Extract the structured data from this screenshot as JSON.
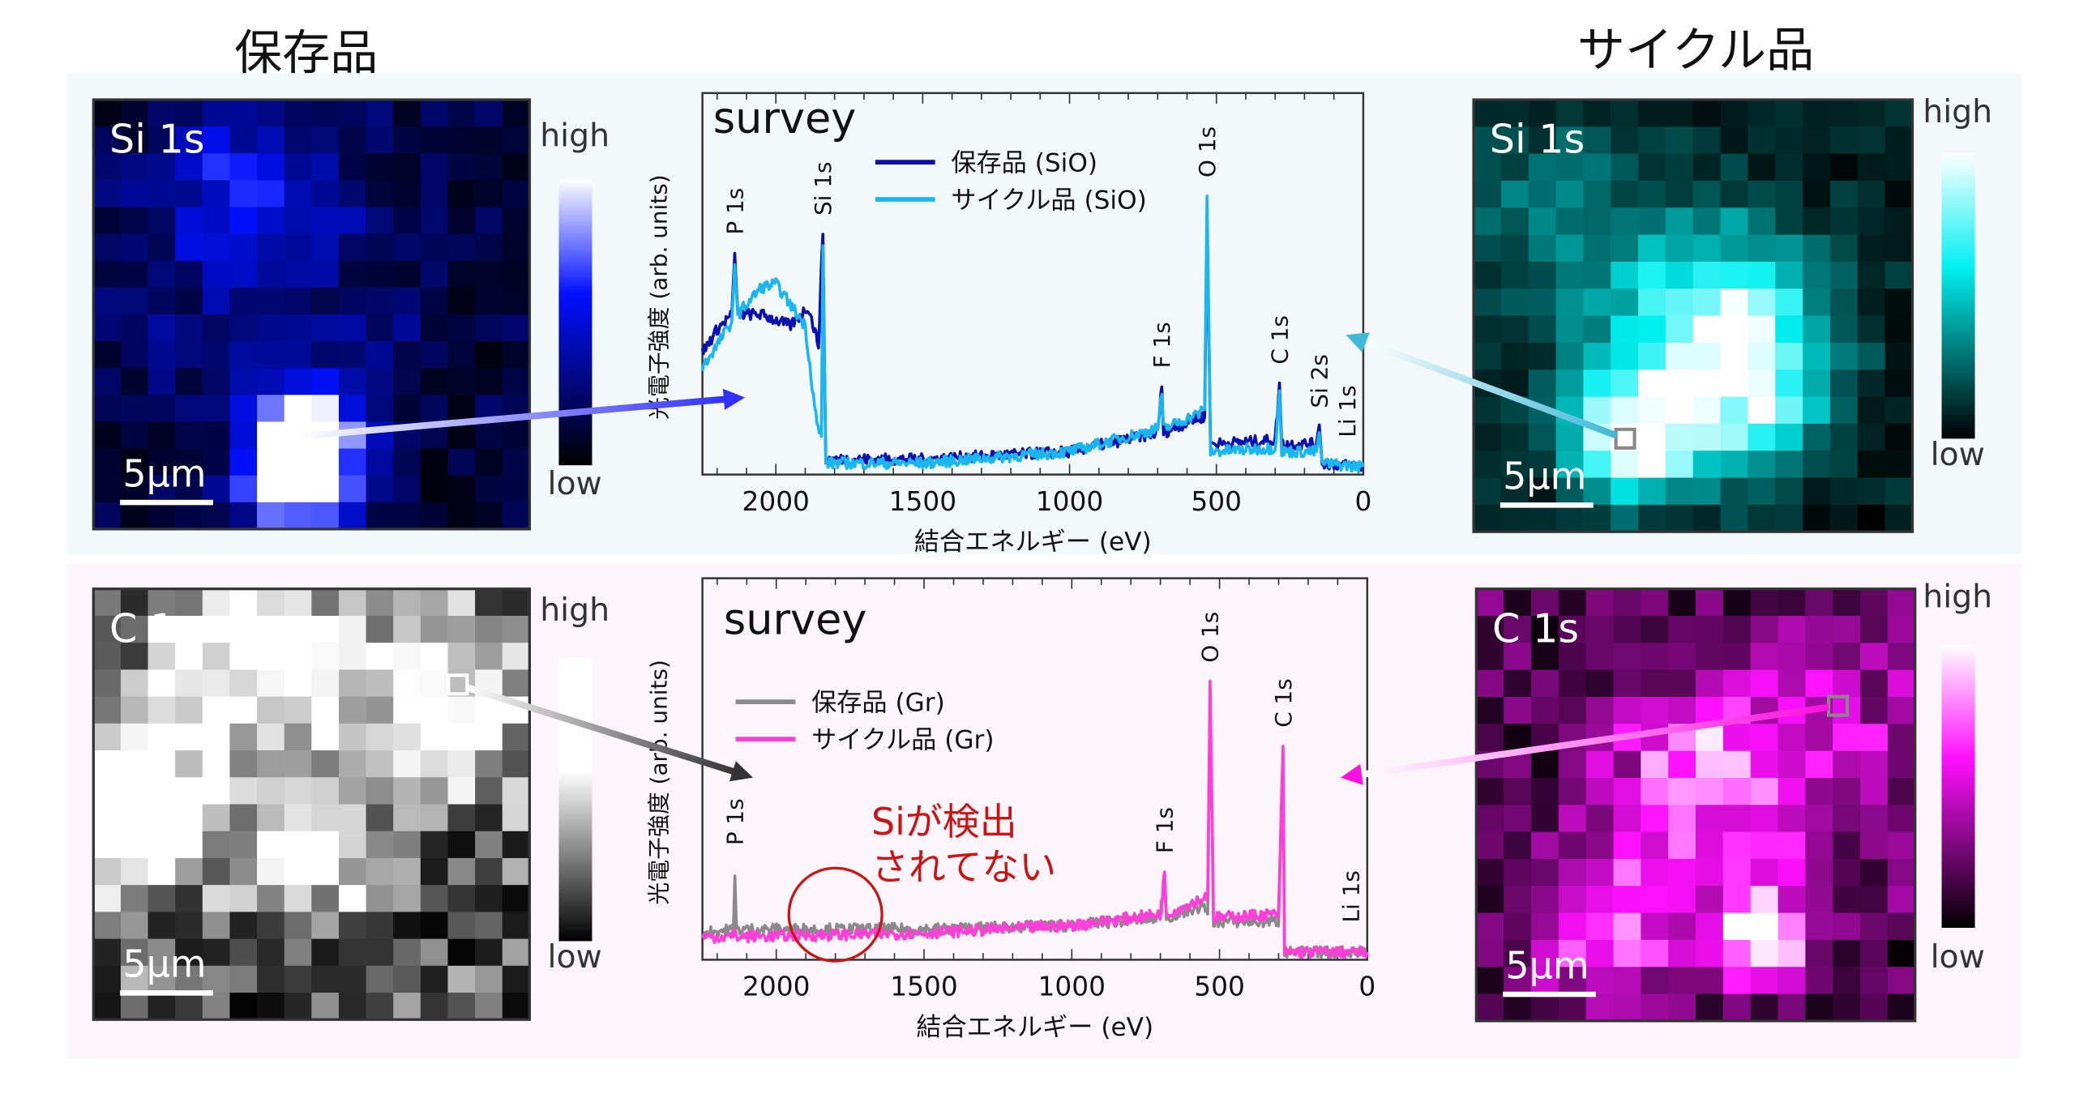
{
  "titles": {
    "left": "保存品",
    "right": "サイクル品"
  },
  "colors": {
    "band_top": "#f3f8fb",
    "band_bottom": "#fcf5fb",
    "sio_stored": "#0b0fb0",
    "sio_cycled": "#19b6f0",
    "gr_stored": "#8a8a8a",
    "gr_cycled": "#ff3fd8",
    "annotation": "#c81414"
  },
  "maps": [
    {
      "label": "Si 1s",
      "scale": "5μm",
      "high": "high",
      "low": "low",
      "color": "#0010ff"
    },
    {
      "label": "Si 1s",
      "scale": "5μm",
      "high": "high",
      "low": "low",
      "color": "#00f0f0"
    },
    {
      "label": "C 1s",
      "scale": "5μm",
      "high": "high",
      "low": "low",
      "color": "#ffffff"
    },
    {
      "label": "C 1s",
      "scale": "5μm",
      "high": "high",
      "low": "low",
      "color": "#ff10ff"
    }
  ],
  "chart_data": [
    {
      "type": "line",
      "title": "survey",
      "xlabel": "結合エネルギー (eV)",
      "ylabel": "光電子強度 (arb. units)",
      "xlim": [
        2250,
        0
      ],
      "xticks": [
        "2000",
        "1500",
        "1000",
        "500",
        "0"
      ],
      "ylim": [
        0,
        1
      ],
      "legend": "top-center",
      "series": [
        {
          "name": "保存品 (SiO)",
          "points": [
            [
              2250,
              0.32
            ],
            [
              2200,
              0.38
            ],
            [
              2150,
              0.42
            ],
            [
              2140,
              0.58
            ],
            [
              2130,
              0.42
            ],
            [
              2050,
              0.42
            ],
            [
              1950,
              0.39
            ],
            [
              1890,
              0.44
            ],
            [
              1855,
              0.34
            ],
            [
              1840,
              0.63
            ],
            [
              1830,
              0.04
            ],
            [
              1500,
              0.04
            ],
            [
              1000,
              0.06
            ],
            [
              700,
              0.11
            ],
            [
              686,
              0.23
            ],
            [
              680,
              0.11
            ],
            [
              560,
              0.15
            ],
            [
              540,
              0.15
            ],
            [
              532,
              0.67
            ],
            [
              520,
              0.08
            ],
            [
              300,
              0.09
            ],
            [
              285,
              0.24
            ],
            [
              278,
              0.08
            ],
            [
              160,
              0.08
            ],
            [
              150,
              0.13
            ],
            [
              140,
              0.03
            ],
            [
              0,
              0.02
            ]
          ]
        },
        {
          "name": "サイクル品 (SiO)",
          "points": [
            [
              2250,
              0.28
            ],
            [
              2200,
              0.34
            ],
            [
              2150,
              0.4
            ],
            [
              2140,
              0.55
            ],
            [
              2130,
              0.42
            ],
            [
              2050,
              0.49
            ],
            [
              2000,
              0.5
            ],
            [
              1900,
              0.39
            ],
            [
              1860,
              0.13
            ],
            [
              1845,
              0.1
            ],
            [
              1840,
              0.6
            ],
            [
              1830,
              0.03
            ],
            [
              1500,
              0.03
            ],
            [
              1000,
              0.06
            ],
            [
              700,
              0.12
            ],
            [
              686,
              0.21
            ],
            [
              680,
              0.12
            ],
            [
              560,
              0.16
            ],
            [
              540,
              0.17
            ],
            [
              532,
              0.73
            ],
            [
              520,
              0.06
            ],
            [
              300,
              0.07
            ],
            [
              285,
              0.22
            ],
            [
              278,
              0.06
            ],
            [
              160,
              0.06
            ],
            [
              150,
              0.11
            ],
            [
              140,
              0.03
            ],
            [
              0,
              0.02
            ]
          ]
        }
      ],
      "annotations": [
        "P 1s",
        "Si 1s",
        "F 1s",
        "O 1s",
        "C 1s",
        "Si 2s",
        "Li 1s"
      ],
      "annotation_positions_ev": [
        2140,
        1840,
        686,
        532,
        285,
        150,
        55
      ]
    },
    {
      "type": "line",
      "title": "survey",
      "xlabel": "結合エネルギー (eV)",
      "ylabel": "光電子強度 (arb. units)",
      "xlim": [
        2250,
        0
      ],
      "xticks": [
        "2000",
        "1500",
        "1000",
        "500",
        "0"
      ],
      "ylim": [
        0,
        1
      ],
      "legend": "left",
      "series": [
        {
          "name": "保存品 (Gr)",
          "points": [
            [
              2250,
              0.07
            ],
            [
              2145,
              0.08
            ],
            [
              2140,
              0.22
            ],
            [
              2135,
              0.08
            ],
            [
              1500,
              0.08
            ],
            [
              1000,
              0.09
            ],
            [
              700,
              0.11
            ],
            [
              686,
              0.21
            ],
            [
              680,
              0.11
            ],
            [
              560,
              0.14
            ],
            [
              540,
              0.12
            ],
            [
              532,
              0.68
            ],
            [
              520,
              0.1
            ],
            [
              300,
              0.1
            ],
            [
              285,
              0.52
            ],
            [
              280,
              0.02
            ],
            [
              0,
              0.02
            ]
          ]
        },
        {
          "name": "サイクル品 (Gr)",
          "points": [
            [
              2250,
              0.06
            ],
            [
              2145,
              0.06
            ],
            [
              2140,
              0.08
            ],
            [
              2135,
              0.06
            ],
            [
              1500,
              0.07
            ],
            [
              1000,
              0.09
            ],
            [
              700,
              0.12
            ],
            [
              686,
              0.23
            ],
            [
              680,
              0.12
            ],
            [
              560,
              0.16
            ],
            [
              540,
              0.17
            ],
            [
              532,
              0.73
            ],
            [
              520,
              0.11
            ],
            [
              300,
              0.12
            ],
            [
              285,
              0.56
            ],
            [
              280,
              0.02
            ],
            [
              0,
              0.02
            ]
          ]
        }
      ],
      "annotations": [
        "P 1s",
        "F 1s",
        "O 1s",
        "C 1s",
        "Li 1s"
      ],
      "annotation_positions_ev": [
        2140,
        686,
        532,
        285,
        55
      ],
      "callout": {
        "line1": "Siが検出",
        "line2": "されてない",
        "center_ev": 1800
      }
    }
  ]
}
